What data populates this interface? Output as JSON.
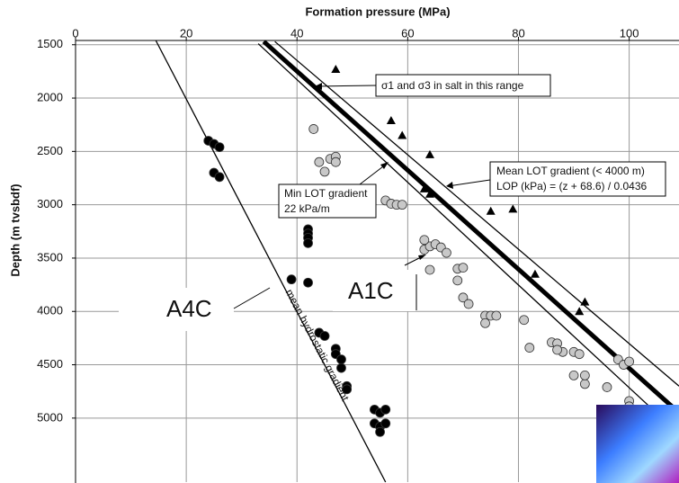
{
  "chart_data": {
    "type": "scatter",
    "x_label": "Formation pressure (MPa)",
    "y_label": "Depth (m tvsbdf)",
    "xlim": [
      0,
      109
    ],
    "ylim": [
      1460,
      5600
    ],
    "y_inverted": true,
    "xticks": [
      0,
      20,
      40,
      60,
      80,
      100
    ],
    "yticks": [
      1500,
      2000,
      2500,
      3000,
      3500,
      4000,
      4500,
      5000
    ],
    "grid": true,
    "series": [
      {
        "marker": "circle",
        "color": "#000000",
        "x": [
          24,
          25,
          26,
          25,
          26,
          42,
          42,
          42,
          42,
          39,
          42,
          44,
          45,
          47,
          47,
          48,
          48,
          49,
          49,
          54,
          55,
          56,
          54,
          55,
          56,
          55
        ],
        "y": [
          2400,
          2430,
          2460,
          2700,
          2740,
          3230,
          3270,
          3310,
          3360,
          3700,
          3730,
          4200,
          4230,
          4350,
          4400,
          4450,
          4530,
          4700,
          4730,
          4920,
          4950,
          4920,
          5050,
          5080,
          5050,
          5130
        ]
      },
      {
        "marker": "circle",
        "color": "#c8c8c8",
        "x": [
          43,
          44,
          45,
          46,
          47,
          47,
          56,
          57,
          58,
          59,
          63,
          64,
          64,
          63,
          65,
          66,
          67,
          69,
          70,
          70,
          71,
          69,
          74,
          74,
          75,
          76,
          81,
          82,
          86,
          87,
          88,
          87,
          90,
          91,
          90,
          92,
          92,
          96,
          98,
          99,
          100,
          100,
          100
        ],
        "y": [
          2290,
          2600,
          2690,
          2570,
          2550,
          2600,
          2960,
          2990,
          3000,
          3000,
          3420,
          3390,
          3610,
          3330,
          3370,
          3400,
          3450,
          3600,
          3590,
          3870,
          3930,
          3710,
          4040,
          4110,
          4040,
          4040,
          4080,
          4340,
          4290,
          4300,
          4380,
          4360,
          4380,
          4400,
          4600,
          4680,
          4600,
          4710,
          4450,
          4500,
          4470,
          4840,
          4890
        ]
      },
      {
        "marker": "triangle",
        "color": "#000000",
        "x": [
          47,
          57,
          59,
          64,
          63,
          64,
          75,
          79,
          83,
          92,
          91
        ],
        "y": [
          1730,
          2210,
          2350,
          2530,
          2850,
          2900,
          3060,
          3040,
          3650,
          3910,
          4000
        ]
      }
    ],
    "lines": [
      {
        "x": [
          14.5,
          56
        ],
        "y": [
          1460,
          5600
        ],
        "width": 1.3,
        "color": "#000000"
      },
      {
        "x": [
          33,
          108
        ],
        "y": [
          1490,
          5100
        ],
        "width": 1.3,
        "color": "#000000"
      },
      {
        "x": [
          34,
          109
        ],
        "y": [
          1470,
          4950
        ],
        "width": 5,
        "color": "#000000"
      },
      {
        "x": [
          36,
          109
        ],
        "y": [
          1470,
          4700
        ],
        "width": 1.3,
        "color": "#000000"
      }
    ],
    "annotations": {
      "salt": "σ1 and σ3 in salt in this range",
      "mean_lot_1": "Mean LOT gradient (< 4000 m)",
      "mean_lot_2": "LOP (kPa) = (z + 68.6) / 0.0436",
      "min_lot_1": "Min LOT gradient",
      "min_lot_2": "22 kPa/m",
      "hydrostatic": "mean hydrostatic gradient",
      "a4c": "A4C",
      "a1c": "A1C"
    }
  }
}
